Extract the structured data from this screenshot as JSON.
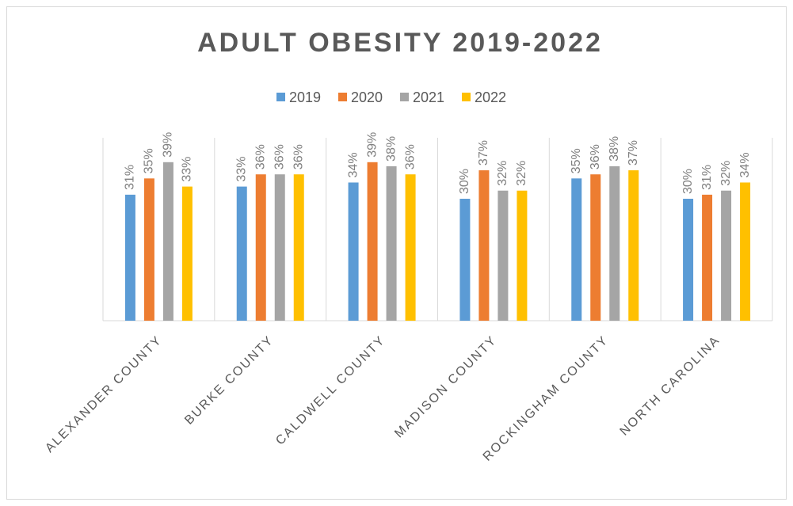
{
  "chart_data": {
    "type": "bar",
    "title": "ADULT OBESITY 2019-2022",
    "categories": [
      "ALEXANDER COUNTY",
      "BURKE COUNTY",
      "CALDWELL COUNTY",
      "MADISON COUNTY",
      "ROCKINGHAM COUNTY",
      "NORTH CAROLINA"
    ],
    "series": [
      {
        "name": "2019",
        "color": "#5b9bd5",
        "values": [
          31,
          33,
          34,
          30,
          35,
          30
        ],
        "value_labels": [
          "31%",
          "33%",
          "34%",
          "30%",
          "35%",
          "30%"
        ]
      },
      {
        "name": "2020",
        "color": "#ed7d31",
        "values": [
          35,
          36,
          39,
          37,
          36,
          31
        ],
        "value_labels": [
          "35%",
          "36%",
          "39%",
          "37%",
          "36%",
          "31%"
        ]
      },
      {
        "name": "2021",
        "color": "#a5a5a5",
        "values": [
          39,
          36,
          38,
          32,
          38,
          32
        ],
        "value_labels": [
          "39%",
          "36%",
          "38%",
          "32%",
          "38%",
          "32%"
        ]
      },
      {
        "name": "2022",
        "color": "#ffc000",
        "values": [
          33,
          36,
          36,
          32,
          37,
          34
        ],
        "value_labels": [
          "33%",
          "36%",
          "36%",
          "32%",
          "37%",
          "34%"
        ]
      }
    ],
    "ylim": [
      0,
      45
    ],
    "legend": "top"
  }
}
